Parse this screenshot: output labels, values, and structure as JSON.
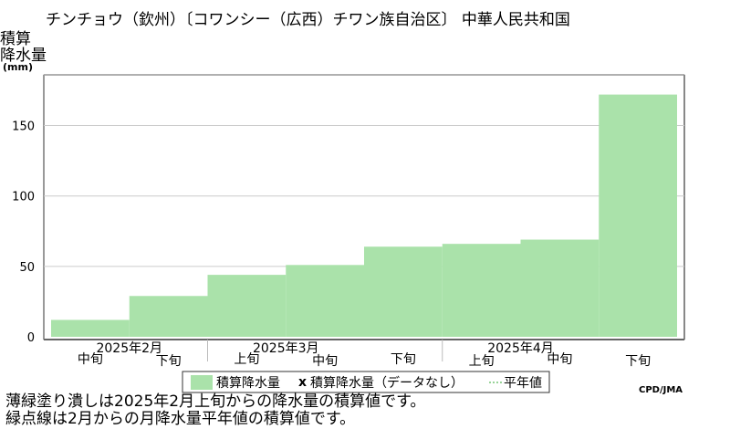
{
  "chart_data": {
    "type": "bar",
    "title": "チンチョウ（欽州）〔コワンシー（広西）チワン族自治区〕 中華人民共和国",
    "ylabel_lines": [
      "積算",
      "降水量"
    ],
    "yunit": "(mm)",
    "ylim": [
      0,
      186
    ],
    "yticks": [
      0,
      50,
      100,
      150
    ],
    "grid": true,
    "periods": [
      "中旬",
      "下旬",
      "上旬",
      "中旬",
      "下旬",
      "上旬",
      "中旬",
      "下旬"
    ],
    "months": [
      {
        "label": "2025年2月",
        "start": 0,
        "count": 2
      },
      {
        "label": "2025年3月",
        "start": 2,
        "count": 3
      },
      {
        "label": "2025年4月",
        "start": 5,
        "count": 3
      }
    ],
    "series": [
      {
        "name": "積算降水量",
        "values": [
          12,
          29,
          44,
          51,
          64,
          66,
          69,
          172
        ],
        "color": "#aae2aa"
      }
    ],
    "legend": {
      "position": "bottom",
      "items": [
        "積算降水量",
        "積算降水量（データなし）",
        "平年値"
      ]
    },
    "credit": "CPD/JMA"
  },
  "notes": [
    "薄緑塗り潰しは2025年2月上旬からの降水量の積算値です。",
    "緑点線は2月からの月降水量平年値の積算値です。"
  ]
}
